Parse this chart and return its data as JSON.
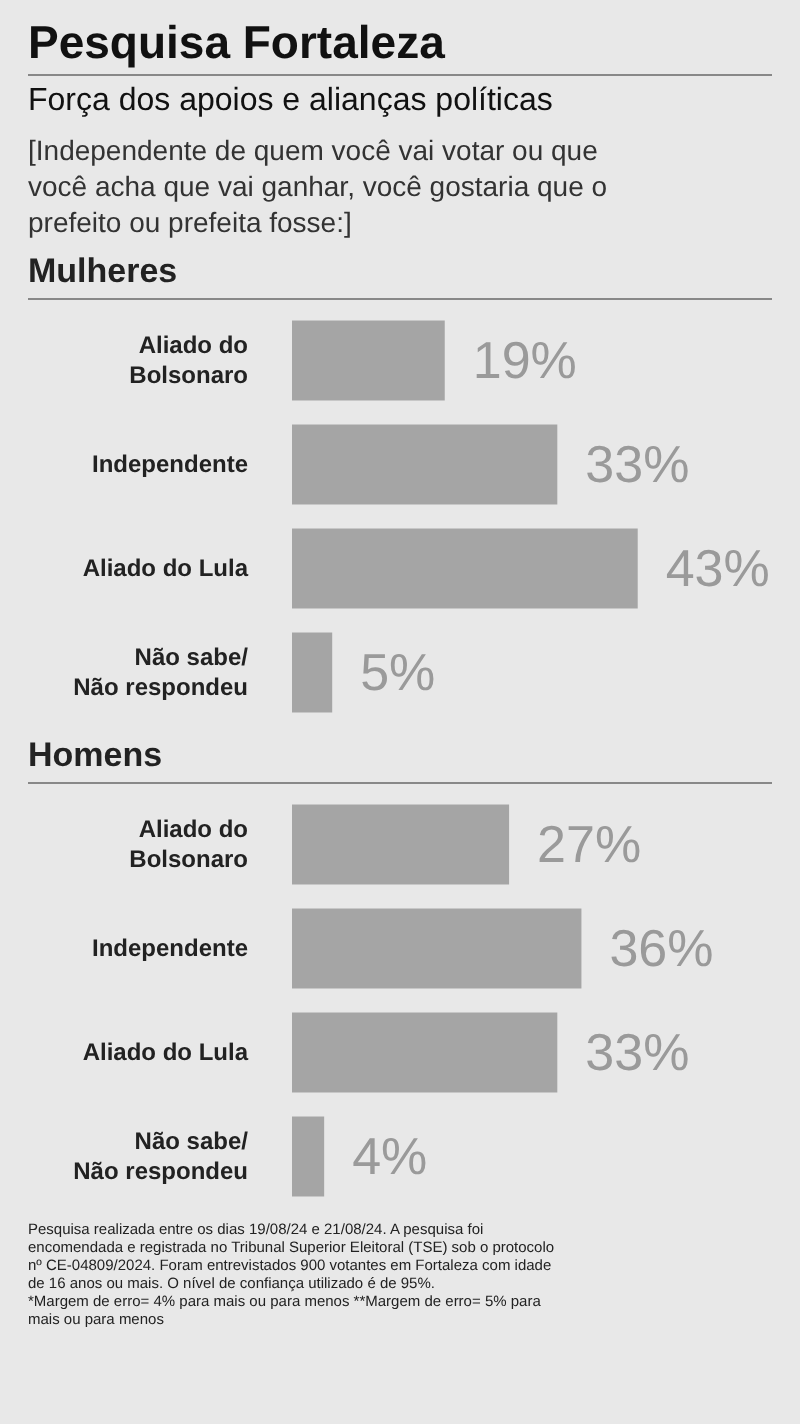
{
  "chart_data": [
    {
      "type": "other",
      "title": "Pesquisa Fortaleza",
      "subtitle": "Força dos apoios e alianças políticas",
      "annotations": [
        "[Independente de quem você vai votar ou que você acha que vai ganhar, você gostaria que o prefeito ou prefeita fosse:]"
      ]
    },
    {
      "type": "bar",
      "orientation": "horizontal",
      "title": "Mulheres",
      "categories": [
        "Aliado do Bolsonaro",
        "Independente",
        "Aliado do Lula",
        "Não sabe/ Não respondeu"
      ],
      "values": [
        19,
        33,
        43,
        5
      ],
      "color": "#a5a5a5",
      "value_labels": [
        "19%",
        "33%",
        "43%",
        "5%"
      ],
      "grid": false,
      "legend": false
    },
    {
      "type": "bar",
      "orientation": "horizontal",
      "title": "Homens",
      "categories": [
        "Aliado do Bolsonaro",
        "Independente",
        "Aliado do Lula",
        "Não sabe/ Não respondeu"
      ],
      "values": [
        27,
        36,
        33,
        4
      ],
      "color": "#a5a5a5",
      "value_labels": [
        "27%",
        "36%",
        "33%",
        "4%"
      ],
      "grid": false,
      "legend": false,
      "annotations": [
        "Pesquisa realizada entre os dias 19/08/24 e 21/08/24. A pesquisa foi encomendada e registrada no Tribunal Superior Eleitoral (TSE) sob o protocolo nº CE-04809/2024. Foram entrevistados 900 votantes em Fortaleza com idade de 16 anos ou mais. O nível de confiança utilizado é de 95%.",
        "*Margem de erro= 4% para mais ou para menos     **Margem de erro= 5% para mais ou para menos"
      ]
    }
  ]
}
